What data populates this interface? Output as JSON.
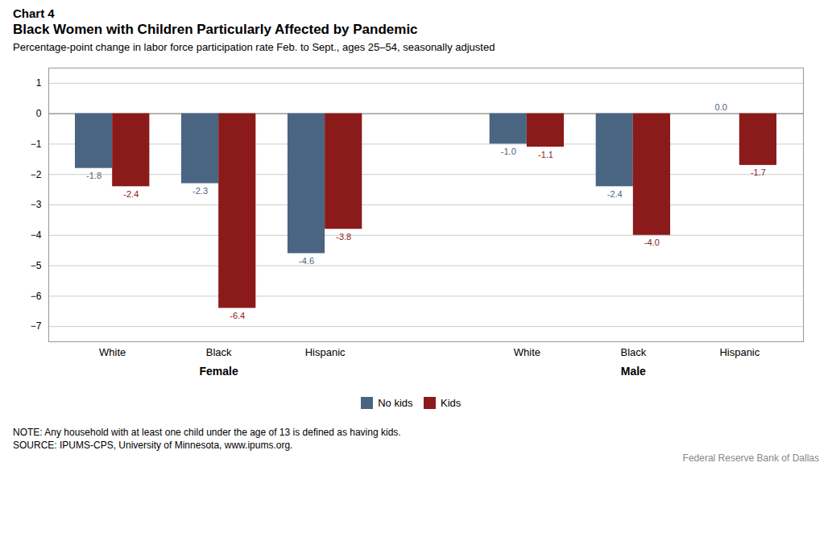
{
  "chart_data": {
    "type": "bar",
    "chart_label": "Chart 4",
    "title": "Black Women with Children Particularly Affected by Pandemic",
    "subtitle": "Percentage-point change in labor force participation rate Feb. to Sept., ages 25–54, seasonally adjusted",
    "categories": [
      "White",
      "Black",
      "Hispanic",
      "White",
      "Black",
      "Hispanic"
    ],
    "groups": [
      "Female",
      "Female",
      "Female",
      "Male",
      "Male",
      "Male"
    ],
    "series": [
      {
        "name": "No kids",
        "color": "#4a6582",
        "values": [
          -1.8,
          -2.3,
          -4.6,
          -1.0,
          -2.4,
          0.0
        ],
        "value_labels": [
          "-1.8",
          "-2.3",
          "-4.6",
          "-1.0",
          "-2.4",
          "0.0"
        ]
      },
      {
        "name": "Kids",
        "color": "#8b1a1a",
        "values": [
          -2.4,
          -6.4,
          -3.8,
          -1.1,
          -4.0,
          -1.7
        ],
        "value_labels": [
          "-2.4",
          "-6.4",
          "-3.8",
          "-1.1",
          "-4.0",
          "-1.7"
        ]
      }
    ],
    "ylim": [
      -7.5,
      1.5
    ],
    "yticks": [
      1,
      0,
      -1,
      -2,
      -3,
      -4,
      -5,
      -6,
      -7
    ],
    "grid": true,
    "legend": "bottom",
    "data_labels": true,
    "note": "NOTE: Any household with at least one child under the age of 13 is defined as having kids.",
    "source": "SOURCE: IPUMS-CPS, University of Minnesota, www.ipums.org.",
    "credit": "Federal Reserve Bank of Dallas"
  }
}
